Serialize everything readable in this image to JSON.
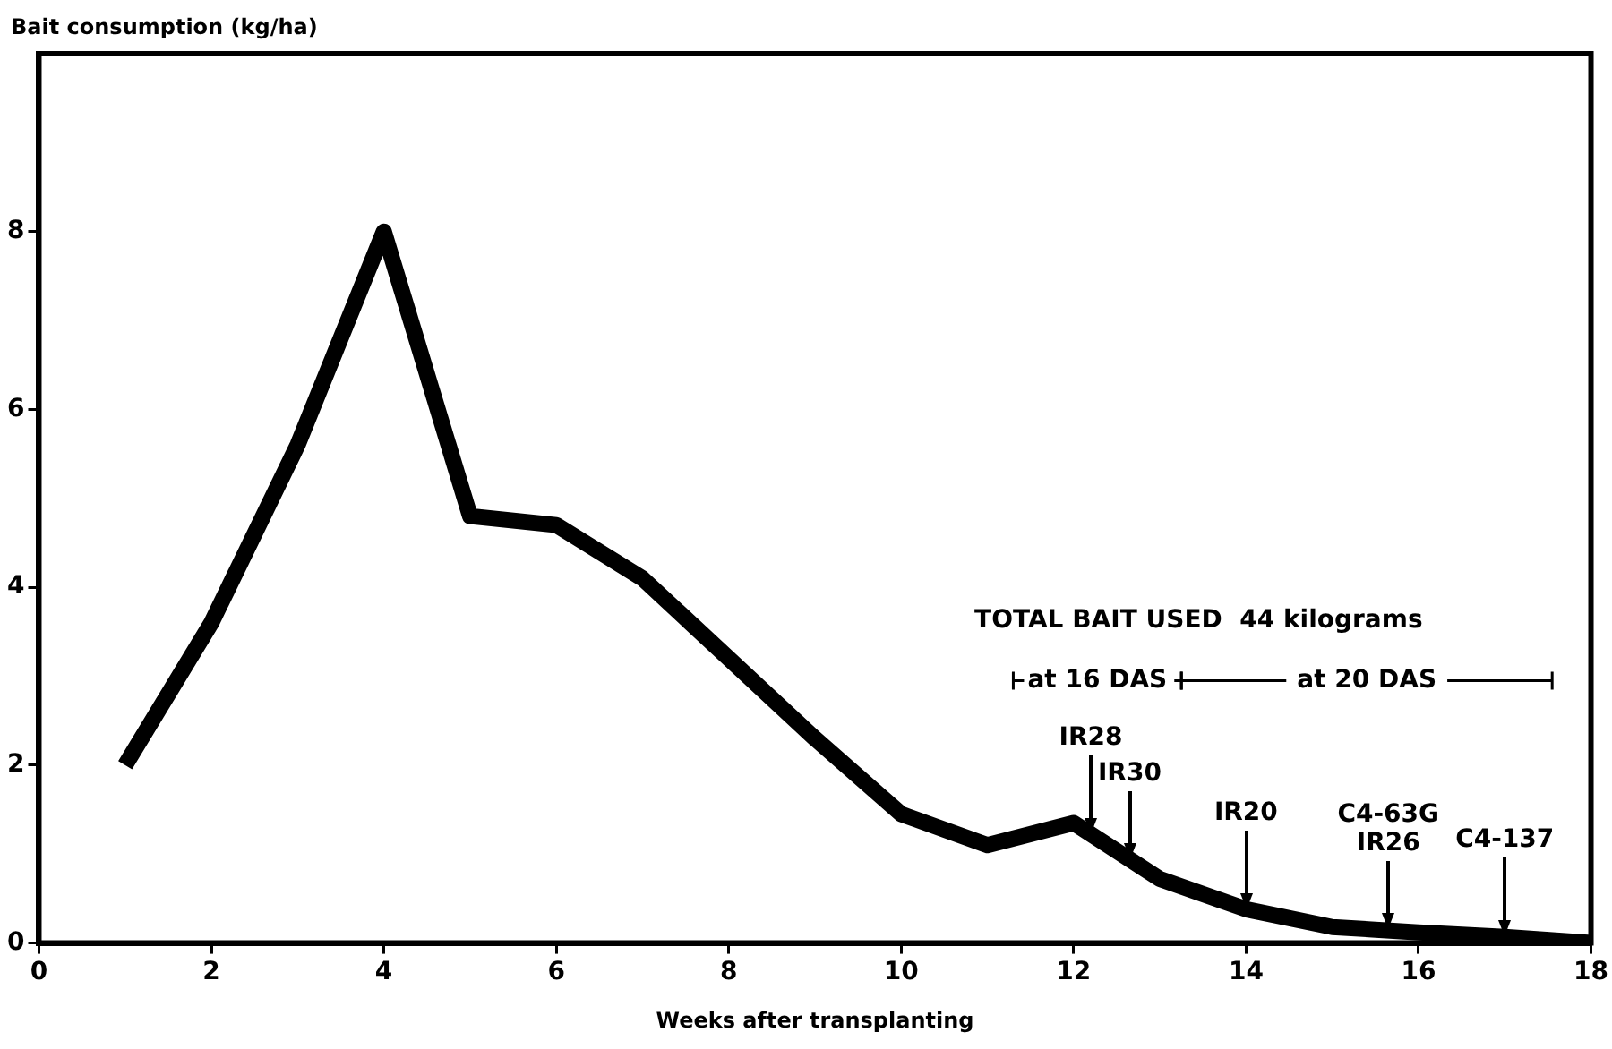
{
  "chart_data": {
    "type": "line",
    "xlabel": "Weeks after transplanting",
    "ylabel": "Bait consumption (kg/ha)",
    "x": [
      1,
      2,
      3,
      4,
      5,
      6,
      7,
      8,
      9,
      10,
      11,
      12,
      13,
      14,
      15,
      16,
      17,
      18
    ],
    "series": [
      {
        "color": "#000000",
        "values": [
          2.0,
          3.6,
          5.6,
          8.0,
          4.8,
          4.7,
          4.1,
          3.2,
          2.3,
          1.45,
          1.1,
          1.35,
          0.72,
          0.38,
          0.18,
          0.12,
          0.07,
          0.0
        ]
      }
    ],
    "xlim": [
      0,
      18
    ],
    "xticks": [
      0,
      2,
      4,
      6,
      8,
      10,
      12,
      14,
      16,
      18
    ],
    "ylim": [
      0,
      10
    ],
    "yticks": [
      0,
      2,
      4,
      6,
      8
    ],
    "grid": false,
    "legend": false,
    "marker": "none",
    "line_style": "solid",
    "annotations": [
      "TOTAL BAIT USED  44 kilograms",
      "at 16 DAS",
      "at 20 DAS",
      {
        "text": "IR28",
        "x": 12.2,
        "y": 1.22
      },
      {
        "text": "IR30",
        "x": 12.65,
        "y": 0.94
      },
      {
        "text": "IR20",
        "x": 14,
        "y": 0.38
      },
      {
        "text": "C4-63G",
        "x": 15.65,
        "y": 0.15
      },
      {
        "text": "IR26",
        "x": 15.65,
        "y": 0.15
      },
      {
        "text": "C4-137",
        "x": 17,
        "y": 0.07
      }
    ]
  }
}
